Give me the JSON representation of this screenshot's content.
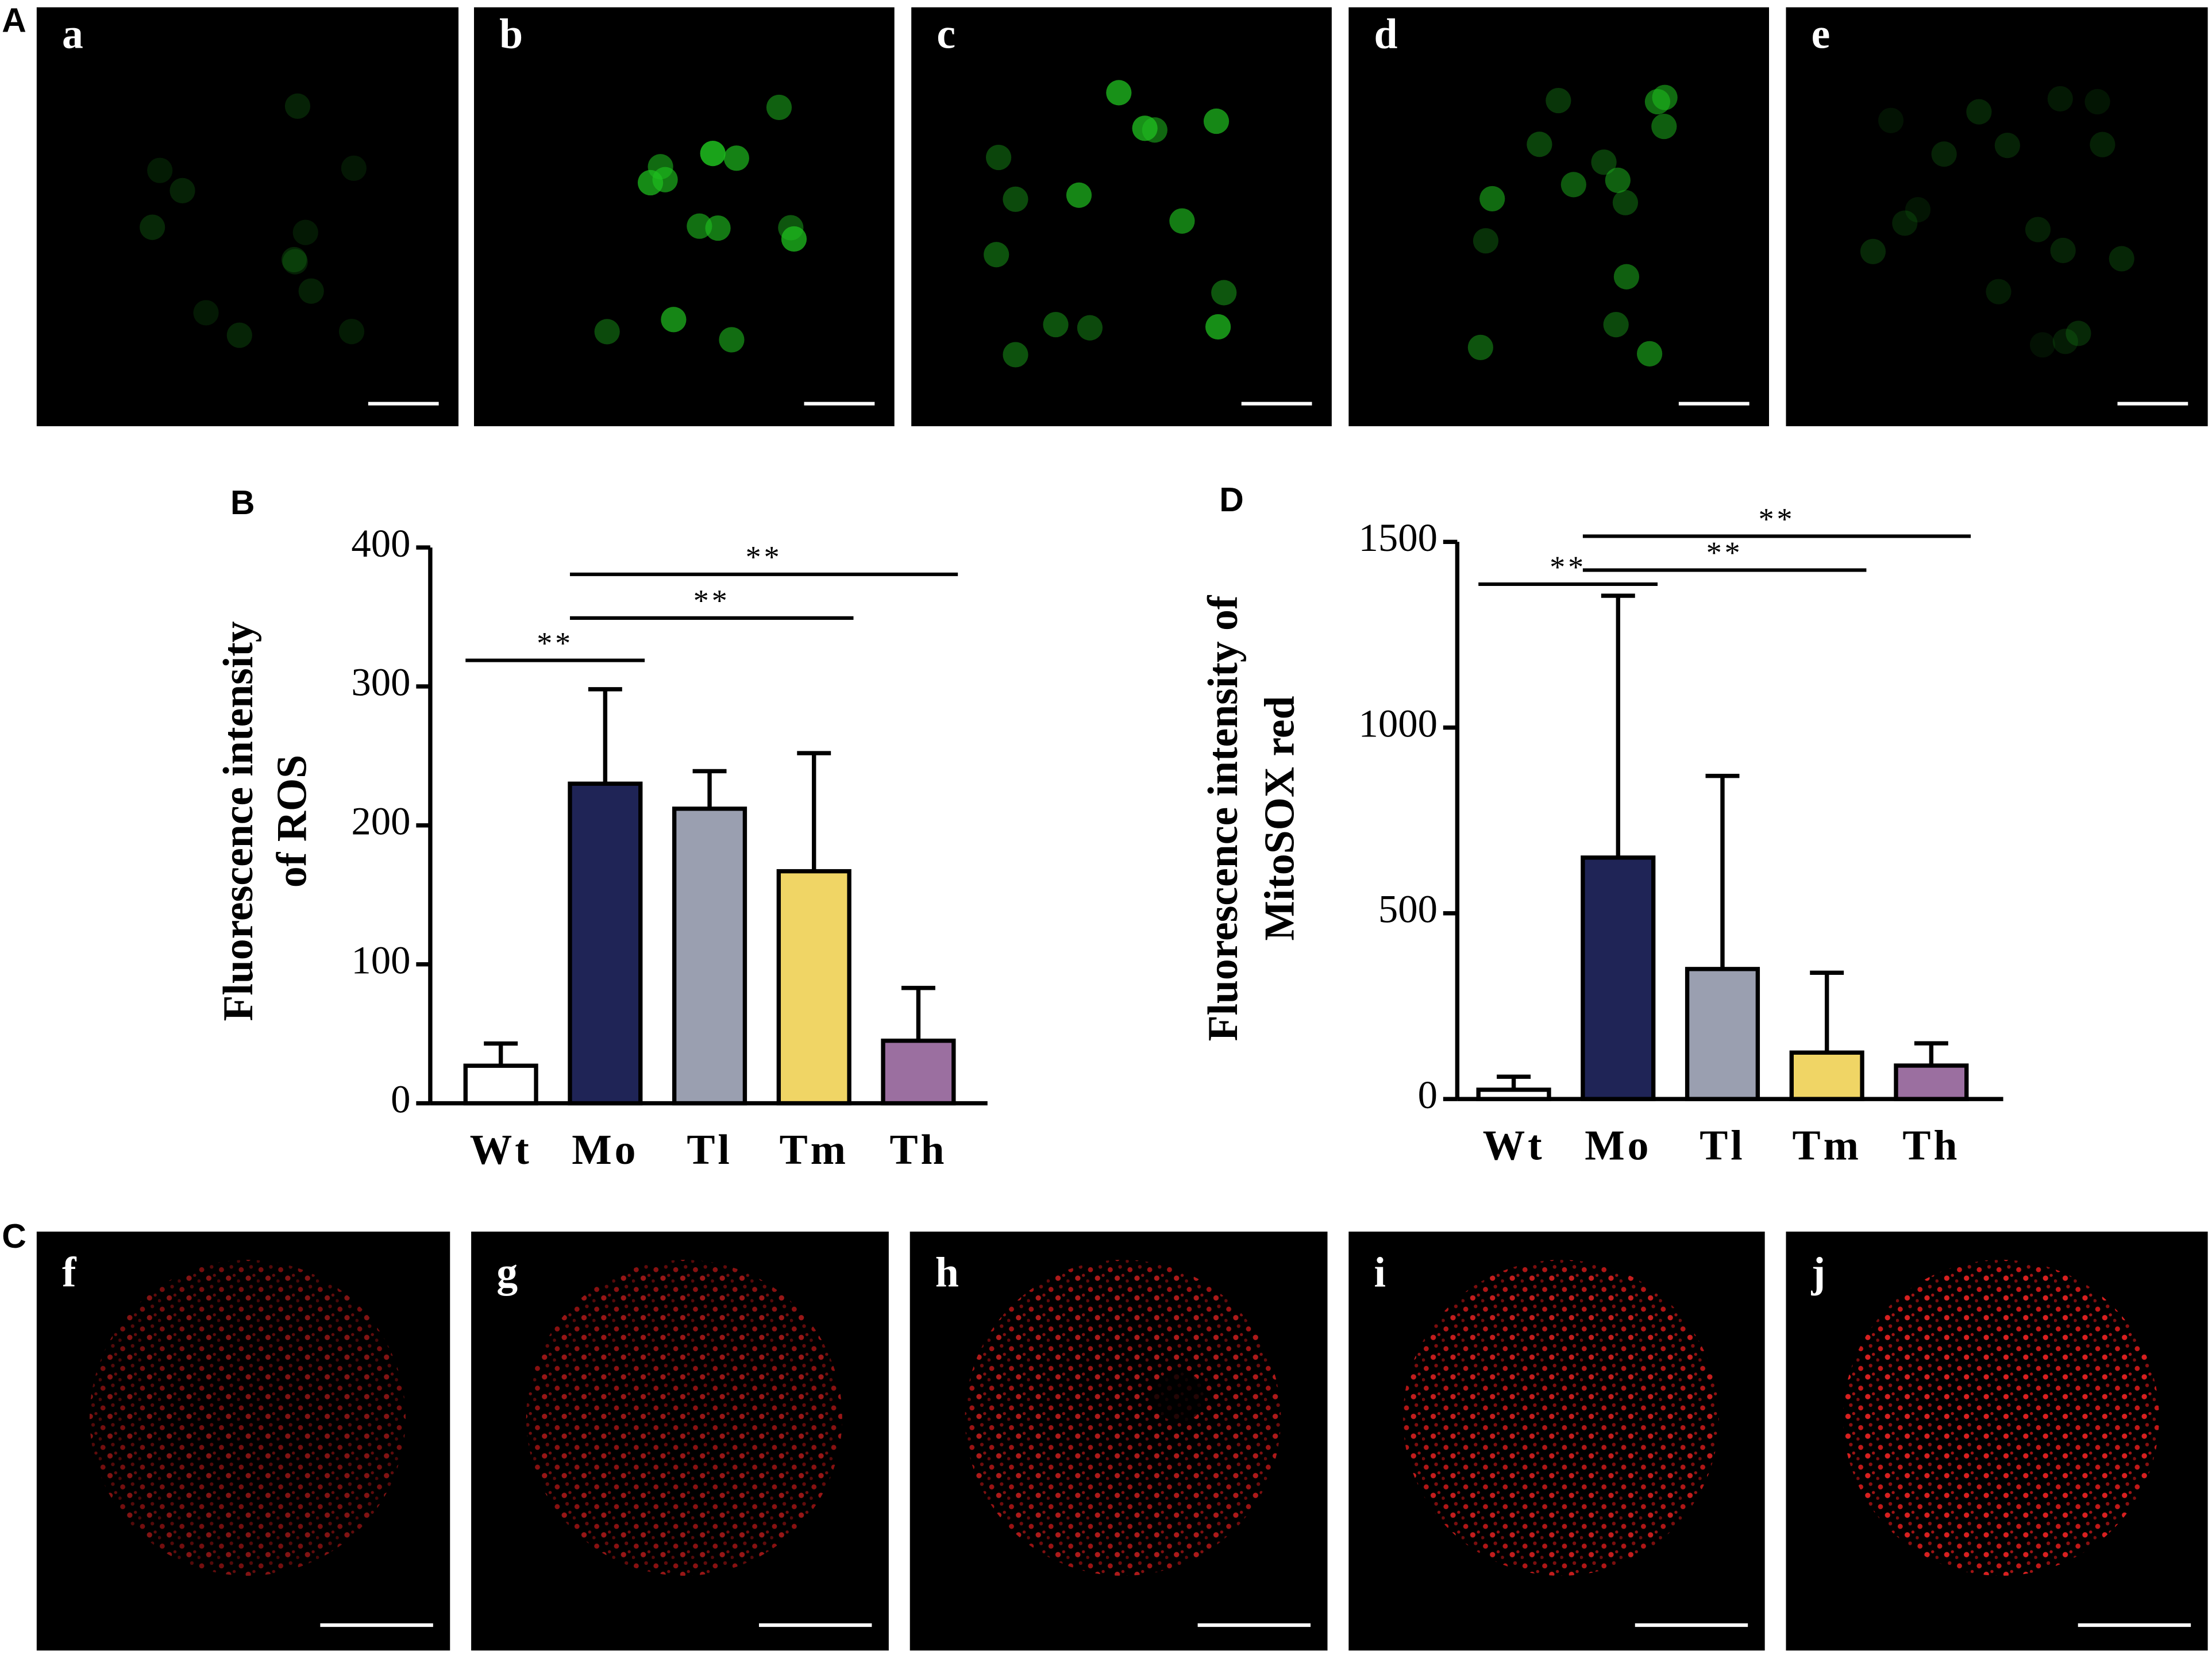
{
  "figure": {
    "panel_A": {
      "label": "A",
      "images": [
        "a",
        "b",
        "c",
        "d",
        "e"
      ]
    },
    "panel_C": {
      "label": "C",
      "images": [
        "f",
        "g",
        "h",
        "i",
        "j"
      ]
    }
  },
  "chart_data": [
    {
      "type": "bar",
      "panel": "B",
      "ylabel": [
        "Fluorescence intensity",
        "of ROS"
      ],
      "categories": [
        "Wt",
        "Mo",
        "Tl",
        "Tm",
        "Th"
      ],
      "values": [
        27,
        230,
        212,
        167,
        45
      ],
      "errors": [
        16,
        68,
        27,
        85,
        38
      ],
      "colors": [
        "#ffffff",
        "#1f2456",
        "#9a9fb0",
        "#f0d565",
        "#9b6fa0"
      ],
      "ylim": [
        0,
        400
      ],
      "yticks": [
        0,
        100,
        200,
        300,
        400
      ],
      "significance": [
        {
          "label": "**",
          "between": [
            "Wt",
            "Mo"
          ]
        },
        {
          "label": "**",
          "between": [
            "Mo",
            "Tm"
          ]
        },
        {
          "label": "**",
          "between": [
            "Mo",
            "Th"
          ]
        }
      ]
    },
    {
      "type": "bar",
      "panel": "D",
      "ylabel": [
        "Fluorescence intensity of",
        "MitoSOX red"
      ],
      "categories": [
        "Wt",
        "Mo",
        "Tl",
        "Tm",
        "Th"
      ],
      "values": [
        25,
        650,
        350,
        125,
        90
      ],
      "errors": [
        35,
        705,
        520,
        215,
        60
      ],
      "colors": [
        "#ffffff",
        "#1f2456",
        "#9a9fb0",
        "#f0d565",
        "#9b6fa0"
      ],
      "ylim": [
        0,
        1500
      ],
      "yticks": [
        0,
        500,
        1000,
        1500
      ],
      "significance": [
        {
          "label": "**",
          "between": [
            "Wt",
            "Mo"
          ]
        },
        {
          "label": "**",
          "between": [
            "Mo",
            "Tm"
          ]
        },
        {
          "label": "**",
          "between": [
            "Mo",
            "Th"
          ]
        }
      ]
    }
  ]
}
